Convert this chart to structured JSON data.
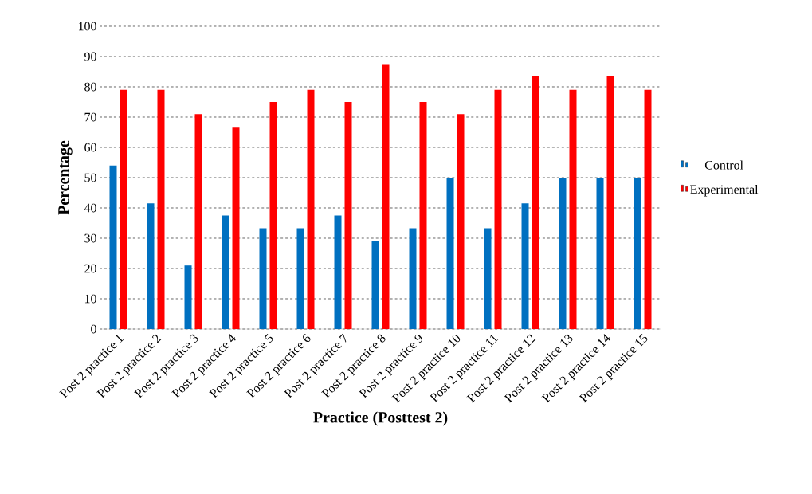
{
  "chart_data": {
    "type": "bar",
    "xlabel": "Practice (Posttest 2)",
    "ylabel": "Percentage",
    "categories": [
      "Post 2 practice 1",
      "Post 2 practice 2",
      "Post 2 practice 3",
      "Post 2 practice 4",
      "Post 2 practice 5",
      "Post 2 practice 6",
      "Post 2 practice 7",
      "Post 2 practice 8",
      "Post 2 practice 9",
      "Post 2 practice 10",
      "Post 2 practice 11",
      "Post 2 practice 12",
      "Post 2 practice 13",
      "Post 2 practice 14",
      "Post 2 practice 15"
    ],
    "series": [
      {
        "name": "Control",
        "color": "#0070c0",
        "values": [
          54,
          41.5,
          21,
          37.5,
          33.3,
          33.3,
          37.5,
          29,
          33.3,
          50,
          33.3,
          41.5,
          50,
          50,
          50
        ]
      },
      {
        "name": "Experimental",
        "color": "#ff0000",
        "values": [
          79,
          79,
          71,
          66.5,
          75,
          79,
          75,
          87.5,
          75,
          71,
          79,
          83.5,
          79,
          83.5,
          79
        ]
      }
    ],
    "ylim": [
      0,
      100
    ],
    "yticks": [
      0,
      10,
      20,
      30,
      40,
      50,
      60,
      70,
      80,
      90,
      100
    ],
    "grid": "y",
    "legend": "right"
  }
}
